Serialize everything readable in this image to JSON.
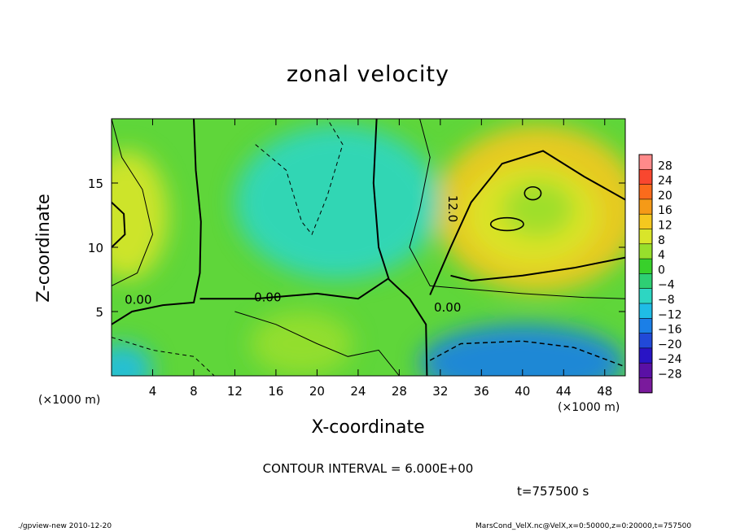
{
  "chart_data": {
    "type": "heatmap",
    "title": "zonal velocity",
    "xlabel": "X-coordinate",
    "ylabel": "Z-coordinate",
    "x_unit": "(×1000 m)",
    "xlim": [
      0,
      50
    ],
    "ylim": [
      0,
      20
    ],
    "x_ticks": [
      4,
      8,
      12,
      16,
      20,
      24,
      28,
      32,
      36,
      40,
      44,
      48
    ],
    "y_ticks": [
      5,
      10,
      15
    ],
    "colorbar": {
      "levels": [
        28,
        24,
        20,
        16,
        12,
        8,
        4,
        0,
        -4,
        -8,
        -12,
        -16,
        -20,
        -24,
        -28
      ],
      "label_text": [
        "28",
        "24",
        "20",
        "16",
        "12",
        "8",
        "4",
        "0",
        "−4",
        "−8",
        "−12",
        "−16",
        "−20",
        "−24",
        "−28"
      ],
      "colors": [
        "#ff8a8a",
        "#f9472f",
        "#fb6b1c",
        "#f59a17",
        "#f5c81f",
        "#d9e52a",
        "#98df2c",
        "#38d02b",
        "#2ecf74",
        "#2dd6c2",
        "#1fbce6",
        "#1b7fe7",
        "#2149d8",
        "#2914c5",
        "#5a10a5",
        "#7a1a9c"
      ]
    },
    "contour_labels": [
      {
        "text": "0.00",
        "x": 2.6,
        "y": 5.6
      },
      {
        "text": "0.00",
        "x": 15.2,
        "y": 5.8
      },
      {
        "text": "0.00",
        "x": 32.7,
        "y": 5.0
      },
      {
        "text": "12.0",
        "x": 32.8,
        "y": 13.0,
        "vertical": true
      }
    ],
    "blobs": [
      {
        "x": 41.5,
        "y": 13,
        "rx": 10,
        "ry": 6.5,
        "v": 12
      },
      {
        "x": 41,
        "y": 12.5,
        "rx": 6.5,
        "ry": 4,
        "v": 8
      },
      {
        "x": 41.5,
        "y": 13,
        "rx": 3.5,
        "ry": 2.2,
        "v": 5
      },
      {
        "x": 1.5,
        "y": 12.5,
        "rx": 4,
        "ry": 5,
        "v": 9
      },
      {
        "x": 18.5,
        "y": 2.5,
        "rx": 5,
        "ry": 2.5,
        "v": 6
      },
      {
        "x": 22,
        "y": 13.5,
        "rx": 10,
        "ry": 6,
        "v": -7
      },
      {
        "x": 40,
        "y": 1,
        "rx": 10,
        "ry": 3,
        "v": -16
      },
      {
        "x": 1,
        "y": 0.5,
        "rx": 3,
        "ry": 2,
        "v": -9
      }
    ],
    "footer_left": "./gpview-new 2010-12-20",
    "footer_right": "MarsCond_VelX.nc@VelX,x=0:50000,z=0:20000,t=757500",
    "contour_interval": "CONTOUR INTERVAL = 6.000E+00",
    "time_label": "t=757500 s"
  }
}
